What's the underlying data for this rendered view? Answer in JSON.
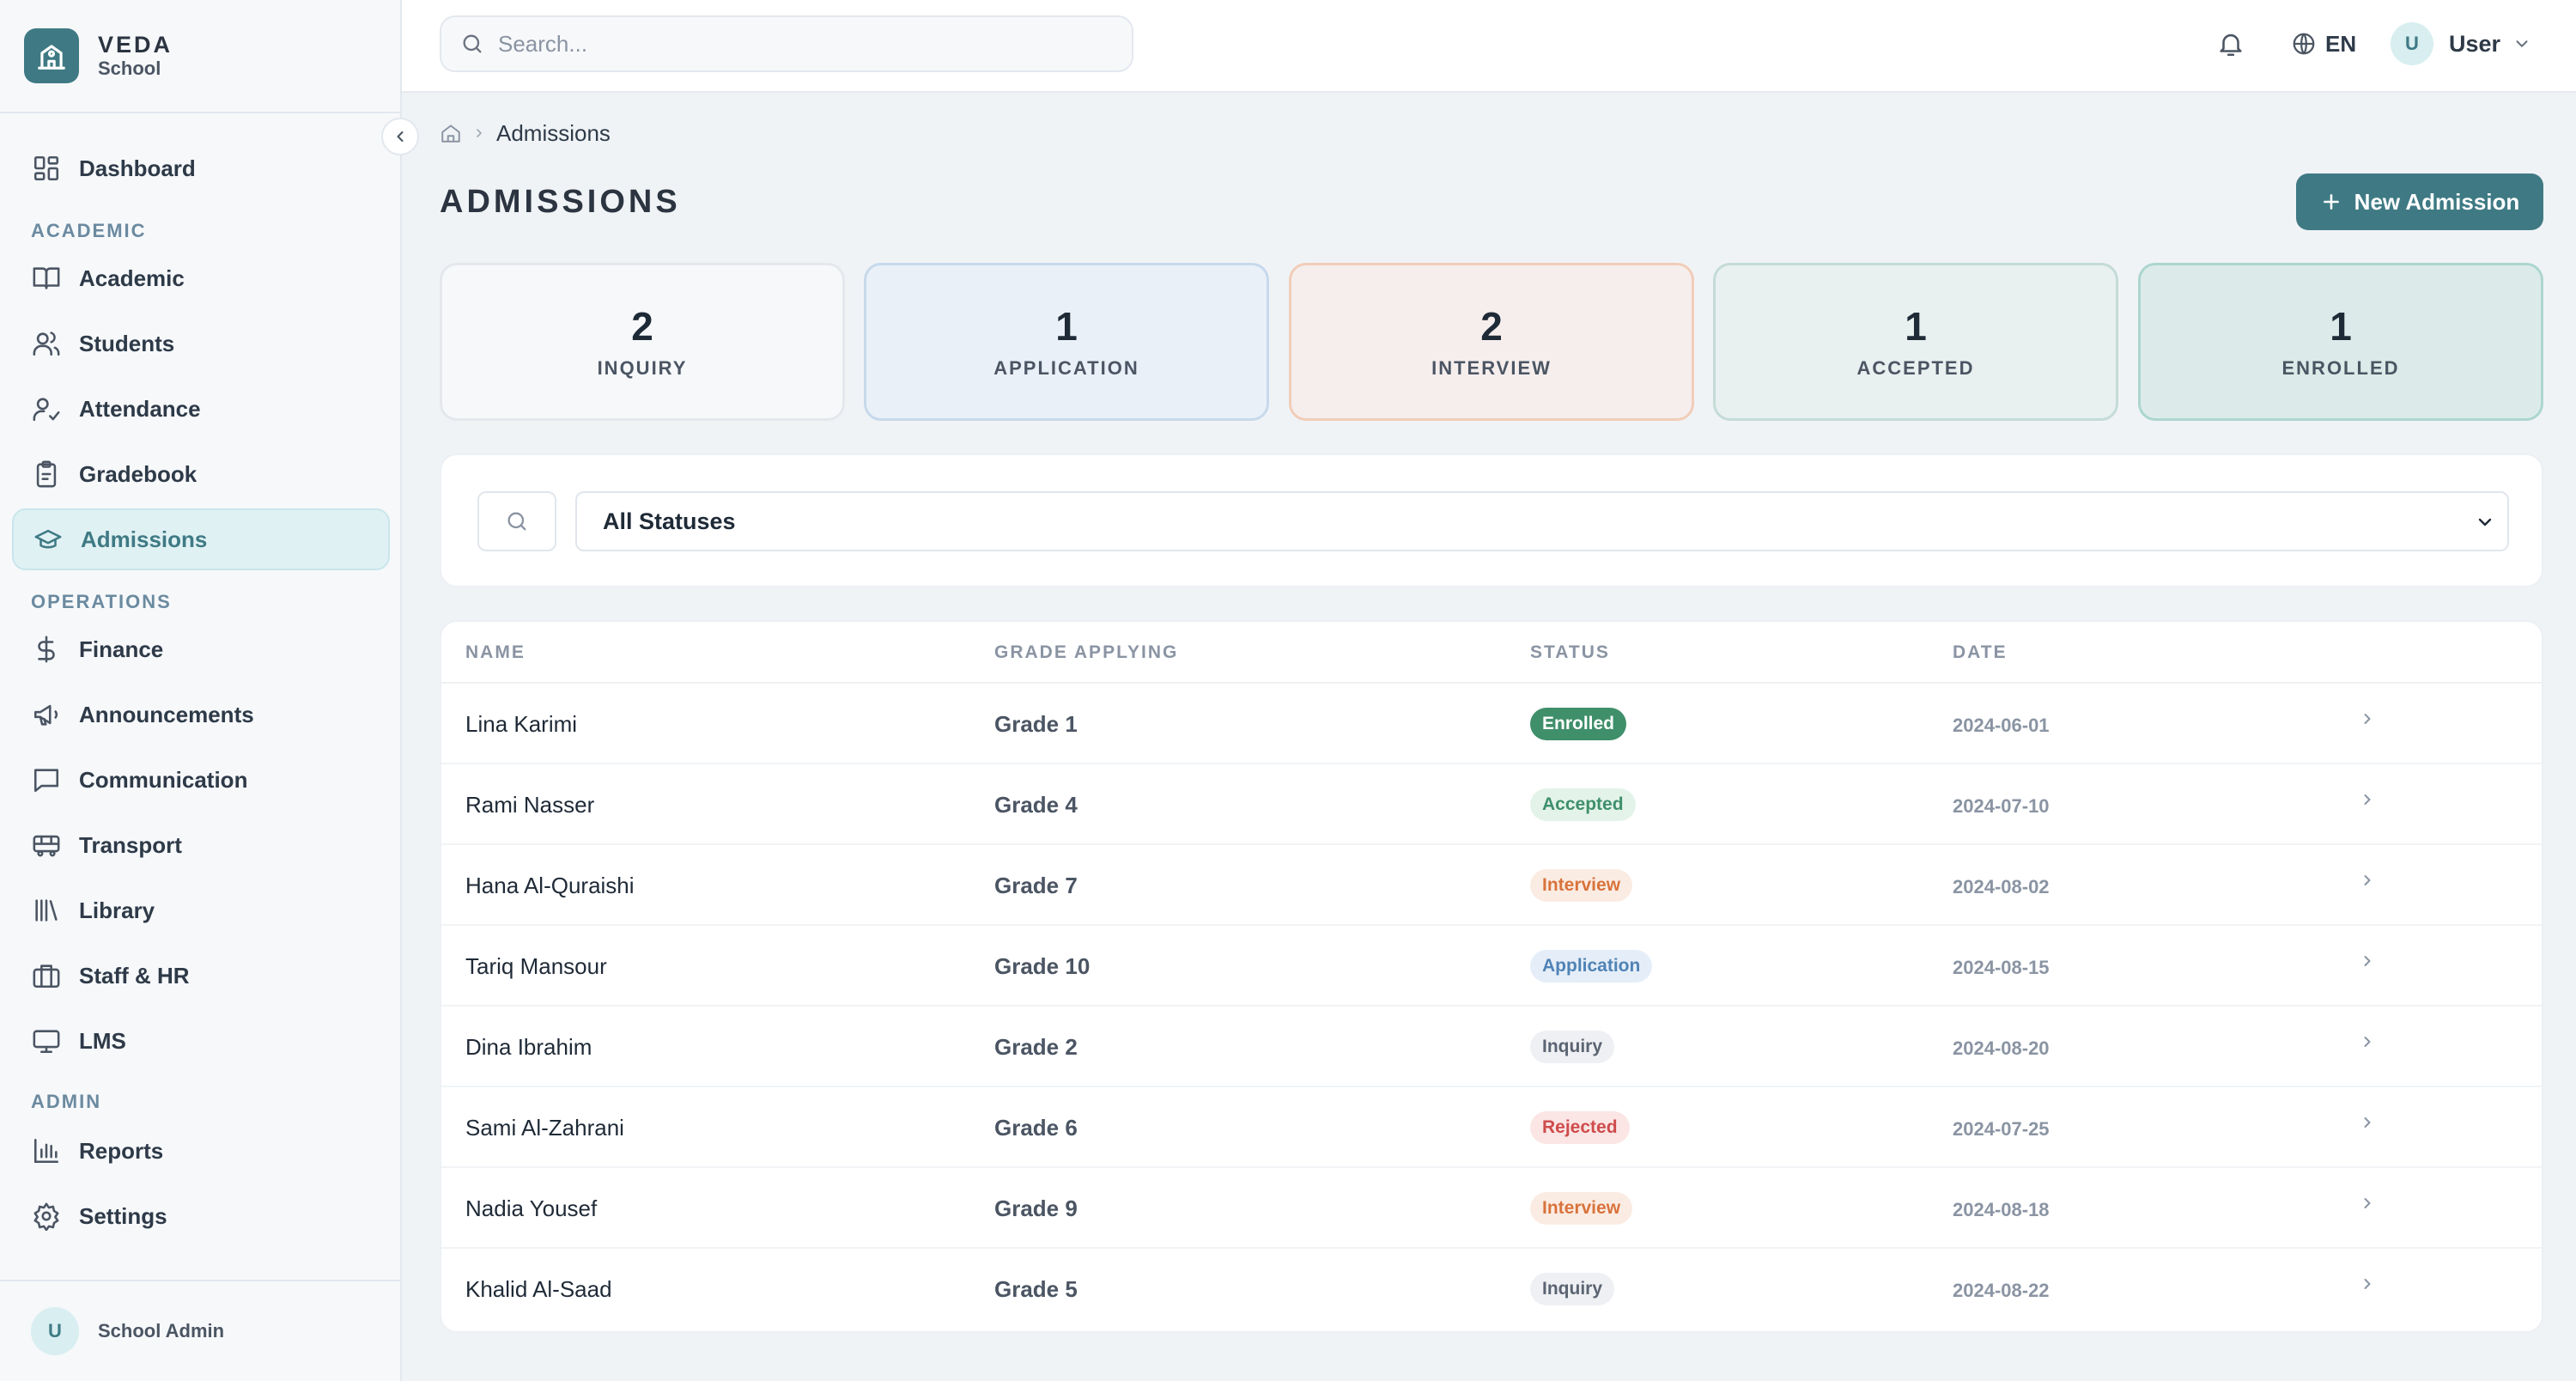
{
  "brand": {
    "name": "VEDA",
    "sub": "School",
    "logo_icon": "school-building-icon"
  },
  "sidebar": {
    "items": [
      {
        "label": "Dashboard",
        "icon": "dashboard-icon"
      },
      {
        "label": "Academic",
        "icon": "book-icon"
      },
      {
        "label": "Students",
        "icon": "users-icon"
      },
      {
        "label": "Attendance",
        "icon": "user-check-icon"
      },
      {
        "label": "Gradebook",
        "icon": "clipboard-icon"
      },
      {
        "label": "Admissions",
        "icon": "graduation-cap-icon",
        "active": true
      },
      {
        "label": "Finance",
        "icon": "dollar-icon"
      },
      {
        "label": "Announcements",
        "icon": "megaphone-icon"
      },
      {
        "label": "Communication",
        "icon": "message-square-icon"
      },
      {
        "label": "Transport",
        "icon": "bus-icon"
      },
      {
        "label": "Library",
        "icon": "library-icon"
      },
      {
        "label": "Staff & HR",
        "icon": "briefcase-icon"
      },
      {
        "label": "LMS",
        "icon": "monitor-icon"
      },
      {
        "label": "Reports",
        "icon": "bar-chart-icon"
      },
      {
        "label": "Settings",
        "icon": "gear-icon"
      }
    ],
    "sections": {
      "academic": "ACADEMIC",
      "operations": "OPERATIONS",
      "admin": "ADMIN"
    },
    "footer": {
      "avatar_initial": "U",
      "name": "School Admin"
    }
  },
  "topbar": {
    "search_placeholder": "Search...",
    "language": "EN",
    "user": {
      "avatar_initial": "U",
      "name": "User"
    }
  },
  "breadcrumb": {
    "current": "Admissions"
  },
  "page": {
    "title": "ADMISSIONS",
    "new_button_label": "New Admission"
  },
  "stats": [
    {
      "count": "2",
      "label": "INQUIRY"
    },
    {
      "count": "1",
      "label": "APPLICATION"
    },
    {
      "count": "2",
      "label": "INTERVIEW"
    },
    {
      "count": "1",
      "label": "ACCEPTED"
    },
    {
      "count": "1",
      "label": "ENROLLED"
    }
  ],
  "filter": {
    "status_selected": "All Statuses"
  },
  "table": {
    "headers": {
      "name": "NAME",
      "grade": "GRADE APPLYING",
      "status": "STATUS",
      "date": "DATE"
    },
    "rows": [
      {
        "name": "Lina Karimi",
        "grade": "Grade 1",
        "status": "Enrolled",
        "date": "2024-06-01"
      },
      {
        "name": "Rami Nasser",
        "grade": "Grade 4",
        "status": "Accepted",
        "date": "2024-07-10"
      },
      {
        "name": "Hana Al-Quraishi",
        "grade": "Grade 7",
        "status": "Interview",
        "date": "2024-08-02"
      },
      {
        "name": "Tariq Mansour",
        "grade": "Grade 10",
        "status": "Application",
        "date": "2024-08-15"
      },
      {
        "name": "Dina Ibrahim",
        "grade": "Grade 2",
        "status": "Inquiry",
        "date": "2024-08-20"
      },
      {
        "name": "Sami Al-Zahrani",
        "grade": "Grade 6",
        "status": "Rejected",
        "date": "2024-07-25"
      },
      {
        "name": "Nadia Yousef",
        "grade": "Grade 9",
        "status": "Interview",
        "date": "2024-08-18"
      },
      {
        "name": "Khalid Al-Saad",
        "grade": "Grade 5",
        "status": "Inquiry",
        "date": "2024-08-22"
      }
    ]
  },
  "colors": {
    "accent": "#3f7a84",
    "status": {
      "Enrolled": {
        "bg": "#3f8f6a",
        "fg": "#ffffff"
      },
      "Accepted": {
        "bg": "#e3f3ea",
        "fg": "#3f8f6a"
      },
      "Interview": {
        "bg": "#fbece3",
        "fg": "#d8733c"
      },
      "Application": {
        "bg": "#e5eef8",
        "fg": "#4f83b5"
      },
      "Inquiry": {
        "bg": "#eef0f3",
        "fg": "#5b6472"
      },
      "Rejected": {
        "bg": "#fbe5e5",
        "fg": "#cf4b4b"
      }
    }
  }
}
